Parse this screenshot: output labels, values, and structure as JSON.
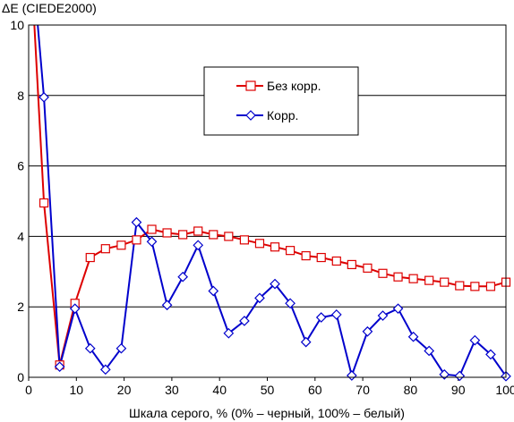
{
  "chart_data": {
    "type": "line",
    "title": "",
    "xlabel": "Шкала серого, % (0% – черный, 100% – белый)",
    "ylabel": "ΔE (CIEDE2000)",
    "xlim": [
      0,
      100
    ],
    "ylim": [
      0,
      10
    ],
    "xticks": [
      0,
      10,
      20,
      30,
      40,
      50,
      60,
      70,
      80,
      90,
      100
    ],
    "yticks": [
      0,
      2,
      4,
      6,
      8,
      10
    ],
    "grid": "horizontal",
    "legend": "top-center",
    "series": [
      {
        "name": "Без корр.",
        "color": "#dd0000",
        "marker": "square",
        "x": [
          0,
          3.2,
          6.5,
          9.7,
          12.9,
          16.1,
          19.4,
          22.6,
          25.8,
          29,
          32.3,
          35.5,
          38.7,
          41.9,
          45.2,
          48.4,
          51.6,
          54.8,
          58.1,
          61.3,
          64.5,
          67.7,
          71,
          74.2,
          77.4,
          80.6,
          83.9,
          87.1,
          90.3,
          93.5,
          96.8,
          100
        ],
        "y": [
          13,
          4.95,
          0.35,
          2.1,
          3.4,
          3.65,
          3.75,
          3.9,
          4.2,
          4.1,
          4.05,
          4.15,
          4.05,
          4.0,
          3.9,
          3.8,
          3.7,
          3.6,
          3.45,
          3.4,
          3.3,
          3.2,
          3.1,
          2.95,
          2.85,
          2.8,
          2.75,
          2.7,
          2.6,
          2.58,
          2.58,
          2.7
        ]
      },
      {
        "name": "Корр.",
        "color": "#0000cc",
        "marker": "diamond",
        "x": [
          0,
          3.2,
          6.5,
          9.7,
          12.9,
          16.1,
          19.4,
          22.6,
          25.8,
          29,
          32.3,
          35.5,
          38.7,
          41.9,
          45.2,
          48.4,
          51.6,
          54.8,
          58.1,
          61.3,
          64.5,
          67.7,
          71,
          74.2,
          77.4,
          80.6,
          83.9,
          87.1,
          90.3,
          93.5,
          96.8,
          100
        ],
        "y": [
          13,
          7.95,
          0.3,
          1.95,
          0.82,
          0.22,
          0.82,
          4.4,
          3.85,
          2.05,
          2.85,
          3.75,
          2.45,
          1.25,
          1.6,
          2.25,
          2.65,
          2.1,
          1.0,
          1.7,
          1.78,
          0.05,
          1.3,
          1.75,
          1.95,
          1.15,
          0.75,
          0.08,
          0.04,
          1.05,
          0.65,
          0.03
        ]
      }
    ]
  }
}
